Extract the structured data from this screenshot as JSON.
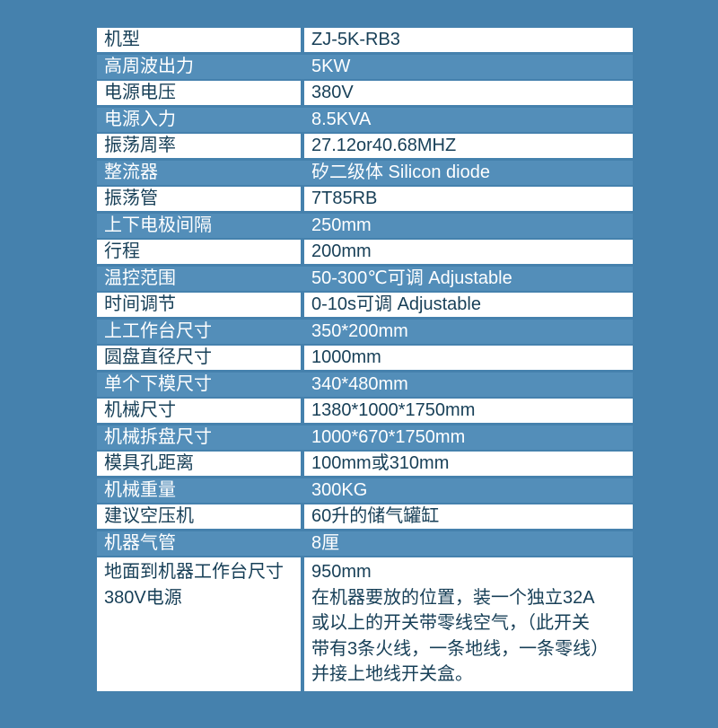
{
  "colors": {
    "page_bg": "#4581AD",
    "row_strip": "#538EB9",
    "cell_bg": "#FFFFFF",
    "text_dark": "#173F57",
    "text_light": "#FFFFFF"
  },
  "table": {
    "rows": [
      {
        "label": "机型",
        "value": "ZJ-5K-RB3"
      },
      {
        "label": "高周波出力",
        "value": "5KW"
      },
      {
        "label": "电源电压",
        "value": "380V"
      },
      {
        "label": "电源入力",
        "value": "8.5KVA"
      },
      {
        "label": "振荡周率",
        "value": "27.12or40.68MHZ"
      },
      {
        "label": "整流器",
        "value": "矽二级体 Silicon diode"
      },
      {
        "label": "振荡管",
        "value": "7T85RB"
      },
      {
        "label": "上下电极间隔",
        "value": "250mm"
      },
      {
        "label": "行程",
        "value": "200mm"
      },
      {
        "label": "温控范围",
        "value": "50-300℃可调 Adjustable"
      },
      {
        "label": "时间调节",
        "value": "0-10s可调 Adjustable"
      },
      {
        "label": "上工作台尺寸",
        "value": "350*200mm"
      },
      {
        "label": "圆盘直径尺寸",
        "value": "1000mm"
      },
      {
        "label": "单个下模尺寸",
        "value": "340*480mm"
      },
      {
        "label": "机械尺寸",
        "value": "1380*1000*1750mm"
      },
      {
        "label": "机械拆盘尺寸",
        "value": "1000*670*1750mm"
      },
      {
        "label": "模具孔距离",
        "value": "100mm或310mm"
      },
      {
        "label": "机械重量",
        "value": "300KG"
      },
      {
        "label": "建议空压机",
        "value": "60升的储气罐缸"
      },
      {
        "label": "机器气管",
        "value": "8厘"
      },
      {
        "label": "地面到机器工作台尺寸\n380V电源",
        "value": "950mm\n在机器要放的位置，装一个独立32A\n或以上的开关带零线空气，（此开关\n带有3条火线，一条地线，一条零线）\n并接上地线开关盒。"
      }
    ]
  }
}
